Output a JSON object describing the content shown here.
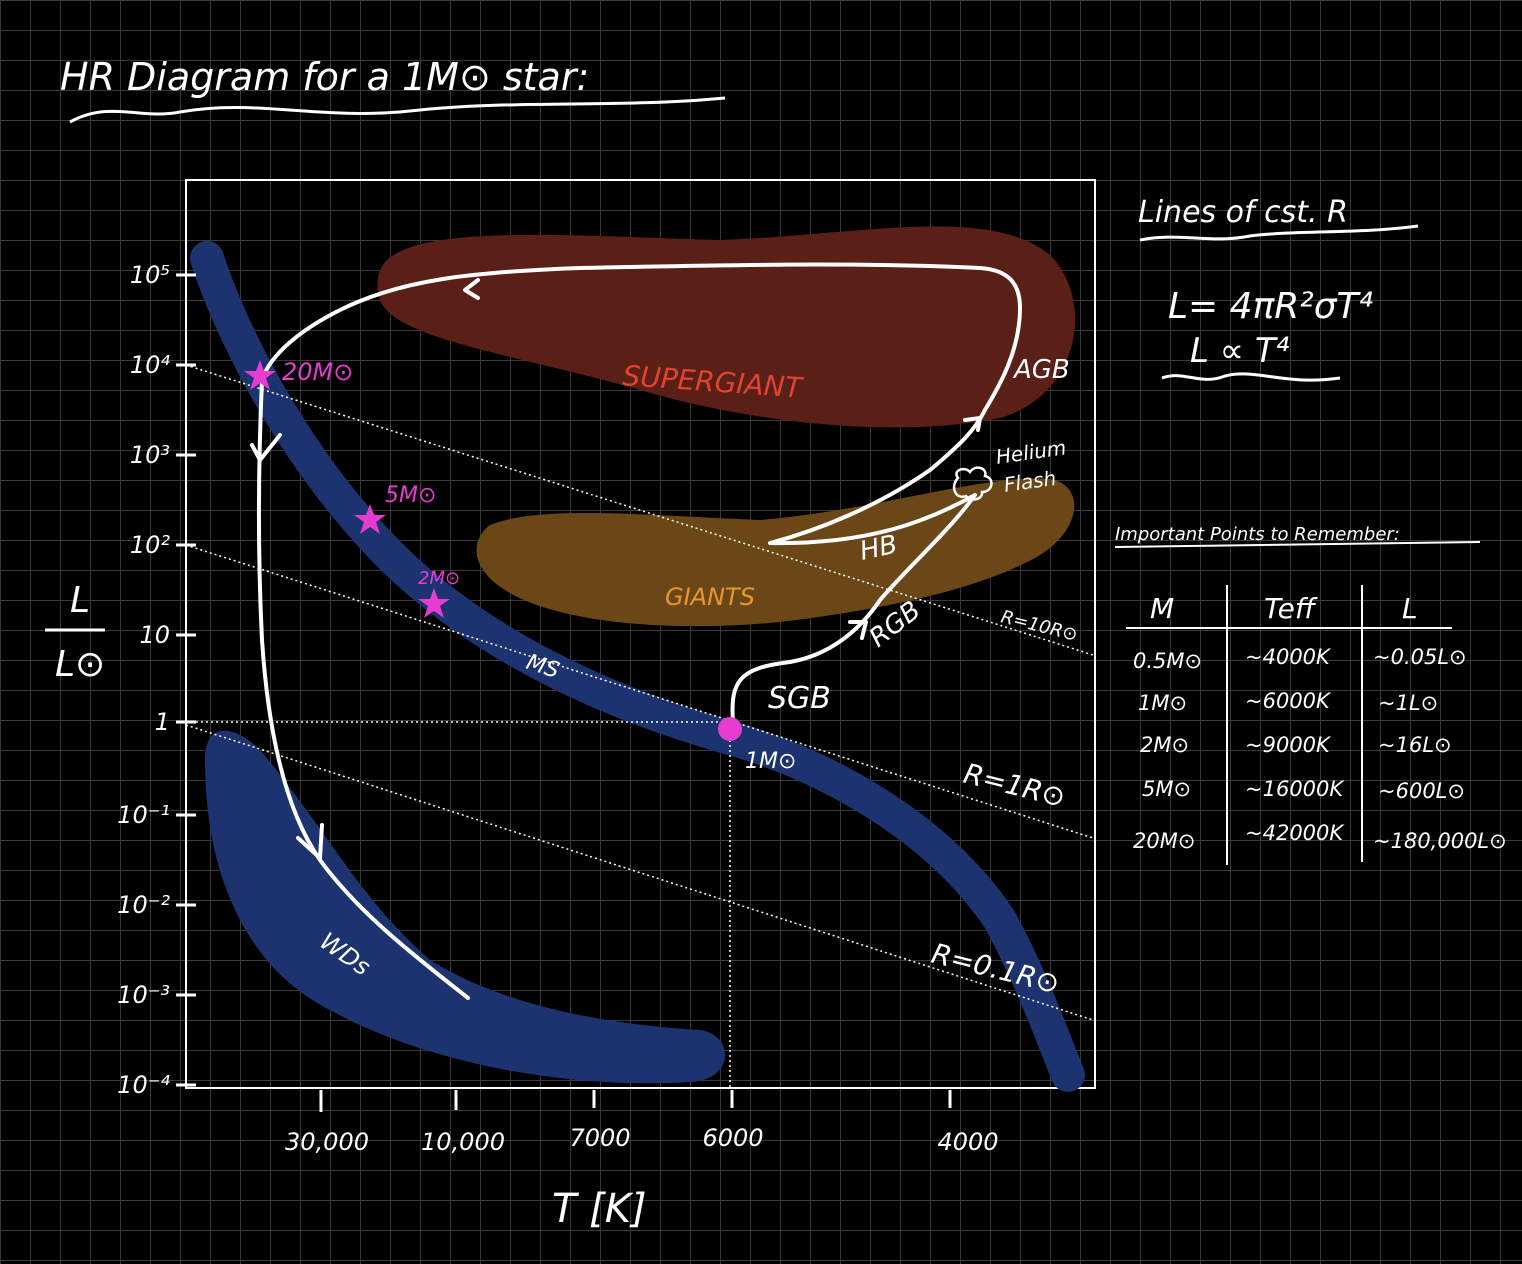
{
  "title": "HR Diagram for a 1M⊙ star:",
  "axes": {
    "ylabel_top": "L",
    "ylabel_bottom": "L⊙",
    "xlabel": "T [K]",
    "y_ticks": [
      "10⁵",
      "10⁴",
      "10³",
      "10²",
      "10",
      "1",
      "10⁻¹",
      "10⁻²",
      "10⁻³",
      "10⁻⁴"
    ],
    "x_ticks": [
      "30,000",
      "10,000",
      "7000",
      "6000",
      "4000"
    ]
  },
  "regions": {
    "supergiant": "SUPERGIANT",
    "giants": "GIANTS",
    "main_sequence": "MS",
    "white_dwarfs": "WDs"
  },
  "stages": {
    "sgb": "SGB",
    "rgb": "RGB",
    "hb": "HB",
    "agb": "AGB",
    "helium_flash_1": "Helium",
    "helium_flash_2": "Flash"
  },
  "stars": {
    "m20": "20M⊙",
    "m5": "5M⊙",
    "m2": "2M⊙",
    "m1": "1M⊙"
  },
  "radius_lines": {
    "r10": "R=10R⊙",
    "r1": "R=1R⊙",
    "r01": "R=0.1R⊙"
  },
  "side": {
    "lines_title": "Lines of cst. R",
    "eq1": "L= 4πR²σT⁴",
    "eq2": "L ∝ T⁴",
    "table_title": "Important Points to Remember:",
    "table": {
      "headers": [
        "M",
        "Teff",
        "L"
      ],
      "rows": [
        [
          "0.5M⊙",
          "~4000K",
          "~0.05L⊙"
        ],
        [
          "1M⊙",
          "~6000K",
          "~1L⊙"
        ],
        [
          "2M⊙",
          "~9000K",
          "~16L⊙"
        ],
        [
          "5M⊙",
          "~16000K",
          "~600L⊙"
        ],
        [
          "20M⊙",
          "~42000K",
          "~180,000L⊙"
        ]
      ]
    }
  },
  "colors": {
    "supergiant": "#5a1f17",
    "giants": "#6b4717",
    "main_sequence": "#1c3370",
    "star_marker": "#e63ccf",
    "supergiant_text": "#e0442f",
    "giants_text": "#e8962e"
  }
}
